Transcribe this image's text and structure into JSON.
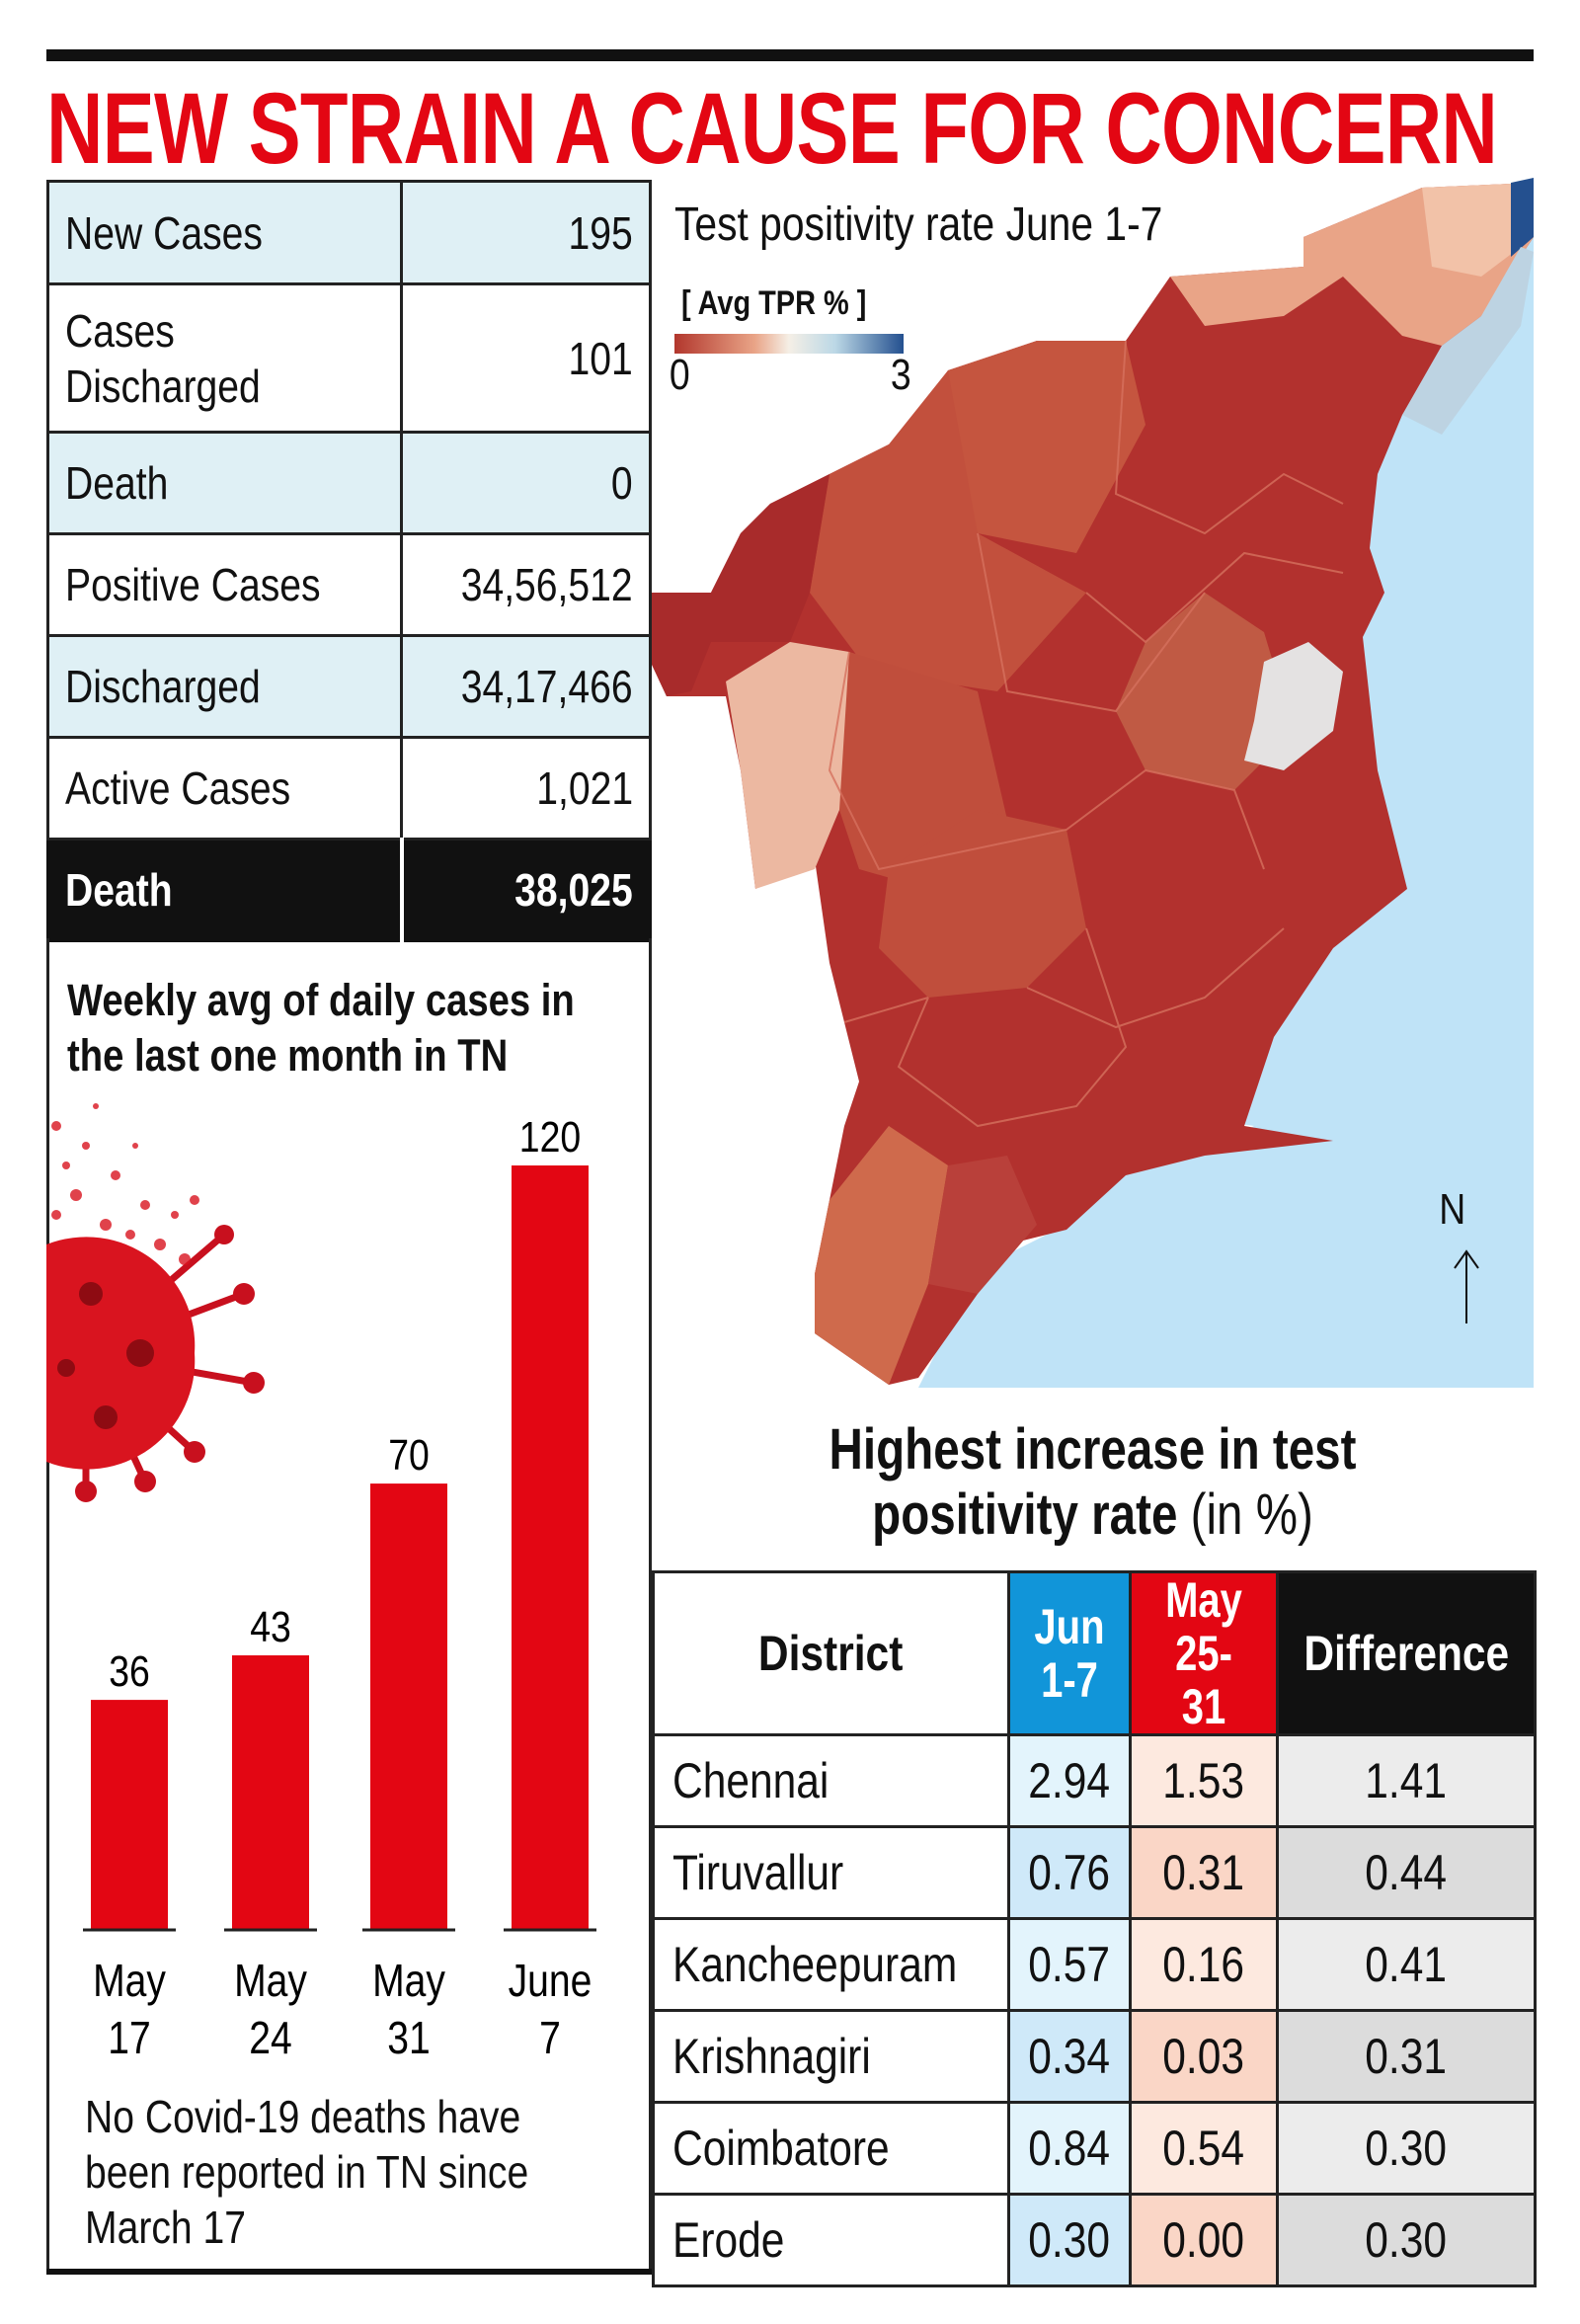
{
  "headline": "NEW STRAIN A CAUSE FOR CONCERN",
  "stats": [
    {
      "label": "New Cases",
      "value": "195"
    },
    {
      "label": "Cases Discharged",
      "value": "101"
    },
    {
      "label": "Death",
      "value": "0"
    },
    {
      "label": "Positive Cases",
      "value": "34,56,512"
    },
    {
      "label": "Discharged",
      "value": "34,17,466"
    },
    {
      "label": "Active Cases",
      "value": "1,021"
    },
    {
      "label": "Death",
      "value": "38,025"
    }
  ],
  "chart_data": {
    "type": "bar",
    "title": "Weekly avg of daily cases in the last one month in TN",
    "categories": [
      "May 17",
      "May 24",
      "May 31",
      "June 7"
    ],
    "category_lines": [
      [
        "May",
        "17"
      ],
      [
        "May",
        "24"
      ],
      [
        "May",
        "31"
      ],
      [
        "June",
        "7"
      ]
    ],
    "values": [
      36,
      43,
      70,
      120
    ],
    "data_labels": [
      "36",
      "43",
      "70",
      "120"
    ],
    "ylim": [
      0,
      120
    ],
    "color": "#e30613",
    "grid": false
  },
  "note": "No Covid-19 deaths have been reported in TN since March 17",
  "map": {
    "title": "Test positivity rate June 1-7",
    "legend_label": "[ Avg TPR % ]",
    "legend_min": "0",
    "legend_max": "3",
    "north_label": "N",
    "colors": {
      "low": "#b2372d",
      "high": "#24508f",
      "sea": "#bfe3f7"
    }
  },
  "tpr_table": {
    "title_bold": "Highest increase in test positivity rate",
    "title_unit": "(in %)",
    "headers": {
      "district": "District",
      "jun": "Jun 1-7",
      "may": "May 25-31",
      "diff": "Difference"
    },
    "header_colors": {
      "jun": "#1195d9",
      "may": "#e30613",
      "diff": "#111111"
    },
    "rows": [
      {
        "district": "Chennai",
        "jun": "2.94",
        "may": "1.53",
        "diff": "1.41"
      },
      {
        "district": "Tiruvallur",
        "jun": "0.76",
        "may": "0.31",
        "diff": "0.44"
      },
      {
        "district": "Kancheepuram",
        "jun": "0.57",
        "may": "0.16",
        "diff": "0.41"
      },
      {
        "district": "Krishnagiri",
        "jun": "0.34",
        "may": "0.03",
        "diff": "0.31"
      },
      {
        "district": "Coimbatore",
        "jun": "0.84",
        "may": "0.54",
        "diff": "0.30"
      },
      {
        "district": "Erode",
        "jun": "0.30",
        "may": "0.00",
        "diff": "0.30"
      }
    ]
  }
}
